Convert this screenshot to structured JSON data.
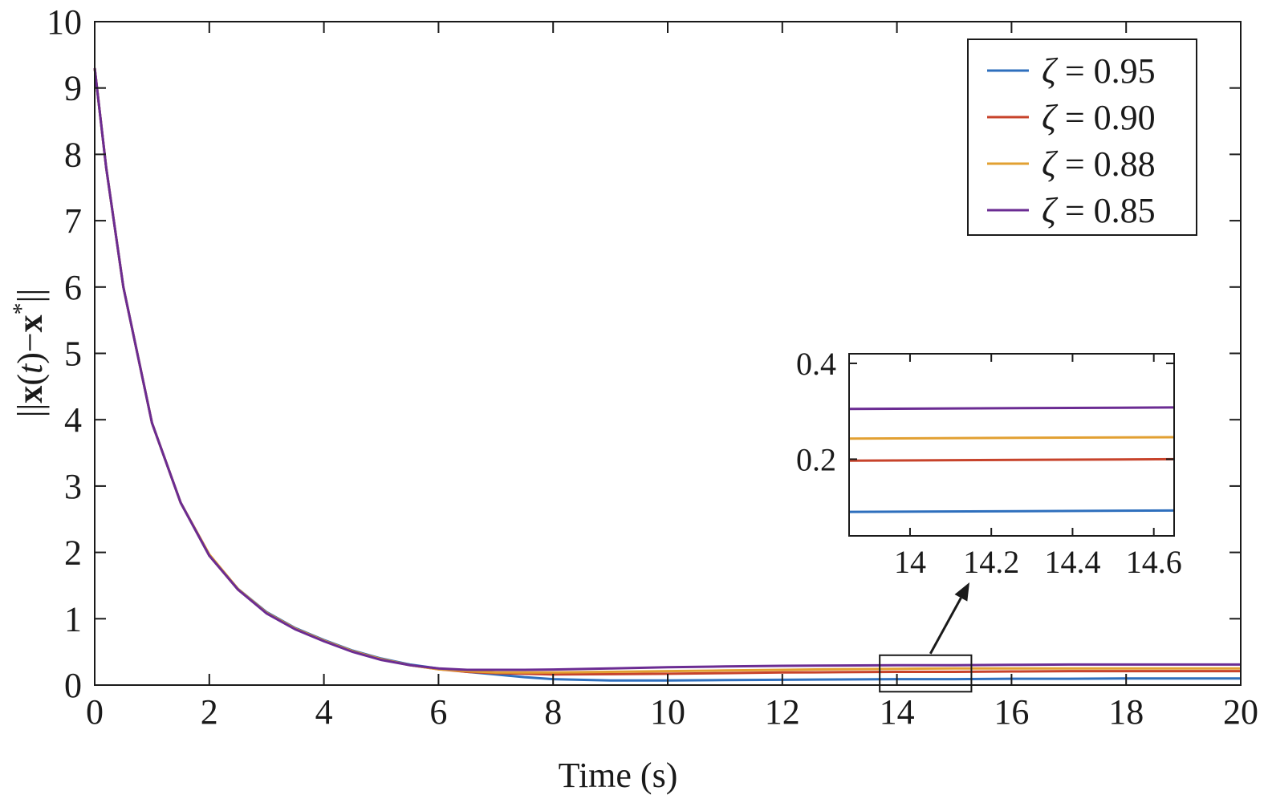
{
  "chart_data": {
    "type": "line",
    "title": "",
    "xlabel": "Time (s)",
    "ylabel_parts": [
      "||",
      "x",
      "(",
      "t",
      ")−",
      "x",
      "*",
      "||"
    ],
    "xlim": [
      0,
      20
    ],
    "ylim": [
      0,
      10
    ],
    "xticks": [
      0,
      2,
      4,
      6,
      8,
      10,
      12,
      14,
      16,
      18,
      20
    ],
    "yticks": [
      0,
      1,
      2,
      3,
      4,
      5,
      6,
      7,
      8,
      9,
      10
    ],
    "grid": false,
    "legend_position": "top-right",
    "series": [
      {
        "name": "ζ = 0.95",
        "color": "#2e6fbd",
        "x": [
          0,
          0.2,
          0.5,
          1,
          1.5,
          2,
          2.5,
          3,
          3.5,
          4,
          4.5,
          5,
          5.5,
          6,
          6.5,
          7,
          7.5,
          8,
          9,
          10,
          11,
          12,
          13,
          14,
          15,
          16,
          17,
          18,
          19,
          20
        ],
        "y": [
          9.3,
          7.8,
          6.0,
          3.95,
          2.75,
          1.95,
          1.45,
          1.1,
          0.86,
          0.68,
          0.52,
          0.4,
          0.31,
          0.25,
          0.2,
          0.16,
          0.12,
          0.09,
          0.07,
          0.07,
          0.075,
          0.08,
          0.085,
          0.09,
          0.09,
          0.095,
          0.095,
          0.1,
          0.1,
          0.1
        ]
      },
      {
        "name": "ζ = 0.90",
        "color": "#c7432b",
        "x": [
          0,
          0.2,
          0.5,
          1,
          1.5,
          2,
          2.5,
          3,
          3.5,
          4,
          4.5,
          5,
          5.5,
          6,
          6.5,
          7,
          7.5,
          8,
          9,
          10,
          11,
          12,
          13,
          14,
          15,
          16,
          17,
          18,
          19,
          20
        ],
        "y": [
          9.3,
          7.8,
          6.0,
          3.95,
          2.75,
          1.95,
          1.44,
          1.09,
          0.85,
          0.67,
          0.51,
          0.39,
          0.3,
          0.24,
          0.2,
          0.18,
          0.17,
          0.16,
          0.165,
          0.17,
          0.18,
          0.19,
          0.195,
          0.2,
          0.2,
          0.205,
          0.21,
          0.21,
          0.21,
          0.21
        ]
      },
      {
        "name": "ζ = 0.88",
        "color": "#e2a032",
        "x": [
          0,
          0.2,
          0.5,
          1,
          1.5,
          2,
          2.5,
          3,
          3.5,
          4,
          4.5,
          5,
          5.5,
          6,
          6.5,
          7,
          7.5,
          8,
          9,
          10,
          11,
          12,
          13,
          14,
          15,
          16,
          17,
          18,
          19,
          20
        ],
        "y": [
          9.3,
          7.8,
          6.0,
          3.95,
          2.75,
          1.97,
          1.45,
          1.09,
          0.85,
          0.67,
          0.51,
          0.39,
          0.3,
          0.24,
          0.21,
          0.19,
          0.19,
          0.19,
          0.2,
          0.21,
          0.22,
          0.23,
          0.24,
          0.245,
          0.25,
          0.25,
          0.25,
          0.25,
          0.25,
          0.25
        ]
      },
      {
        "name": "ζ = 0.85",
        "color": "#6b2c93",
        "x": [
          0,
          0.2,
          0.5,
          1,
          1.5,
          2,
          2.5,
          3,
          3.5,
          4,
          4.5,
          5,
          5.5,
          6,
          6.5,
          7,
          7.5,
          8,
          9,
          10,
          11,
          12,
          13,
          14,
          15,
          16,
          17,
          18,
          19,
          20
        ],
        "y": [
          9.3,
          7.8,
          6.0,
          3.95,
          2.75,
          1.95,
          1.44,
          1.08,
          0.84,
          0.66,
          0.5,
          0.38,
          0.3,
          0.25,
          0.23,
          0.23,
          0.23,
          0.235,
          0.25,
          0.27,
          0.28,
          0.29,
          0.295,
          0.3,
          0.3,
          0.305,
          0.31,
          0.31,
          0.31,
          0.31
        ]
      }
    ],
    "zoom_box": {
      "xlim": [
        13.7,
        15.3
      ],
      "ylim": [
        -0.1,
        0.45
      ]
    },
    "inset": {
      "xlim": [
        13.85,
        14.65
      ],
      "ylim": [
        0.04,
        0.42
      ],
      "xticks": [
        14,
        14.2,
        14.4,
        14.6
      ],
      "xtick_labels": [
        "14",
        "14.2",
        "14.4",
        "14.6"
      ],
      "yticks": [
        0.2,
        0.4
      ],
      "ytick_labels": [
        "0.2",
        "0.4"
      ],
      "lines": [
        {
          "color": "#6b2c93",
          "y_start": 0.305,
          "y_end": 0.308
        },
        {
          "color": "#e2a032",
          "y_start": 0.243,
          "y_end": 0.246
        },
        {
          "color": "#c7432b",
          "y_start": 0.197,
          "y_end": 0.2
        },
        {
          "color": "#2e6fbd",
          "y_start": 0.09,
          "y_end": 0.093
        }
      ]
    }
  }
}
